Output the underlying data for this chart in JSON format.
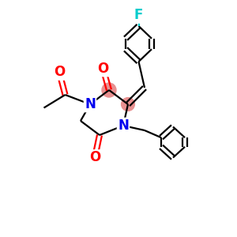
{
  "bg_color": "#ffffff",
  "atom_colors": {
    "C": "#000000",
    "N": "#0000ee",
    "O": "#ff0000",
    "F": "#00cccc",
    "highlight": "#e89090"
  },
  "bond_color": "#000000",
  "bond_width": 1.6,
  "figsize": [
    3.0,
    3.0
  ],
  "dpi": 100,
  "xlim": [
    0,
    10
  ],
  "ylim": [
    0,
    10
  ]
}
